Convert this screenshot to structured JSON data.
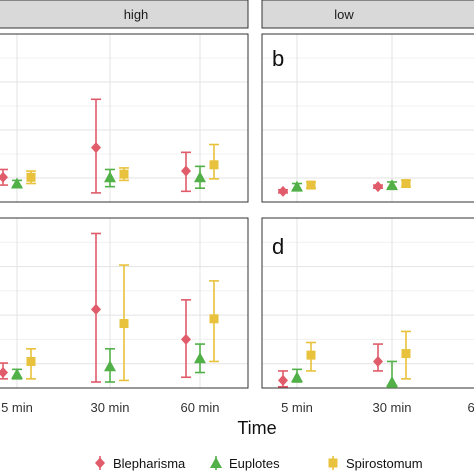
{
  "chart_data": {
    "type": "scatter",
    "subtype": "point-range facet grid",
    "xlabel": "Time",
    "x_categories": [
      "5 min",
      "30 min",
      "60 min"
    ],
    "facet_columns": [
      "high",
      "low"
    ],
    "panel_tags": [
      "b",
      "d"
    ],
    "legend": {
      "position": "bottom",
      "entries": [
        "Blepharisma",
        "Euplotes",
        "Spirostomum"
      ]
    },
    "grid": true,
    "colors": {
      "Blepharisma": "#e05c6a",
      "Euplotes": "#52b048",
      "Spirostomum": "#e8c23c"
    },
    "markers": {
      "Blepharisma": "diamond",
      "Euplotes": "triangle",
      "Spirostomum": "square"
    },
    "top_row_ylim": [
      0,
      1
    ],
    "bottom_row_ylim": [
      0,
      1
    ],
    "panels": [
      {
        "row": 0,
        "col": "high",
        "series": [
          {
            "name": "Blepharisma",
            "points": [
              {
                "x": "5 min",
                "y": 0.12,
                "lo": 0.07,
                "hi": 0.17
              },
              {
                "x": "30 min",
                "y": 0.31,
                "lo": 0.02,
                "hi": 0.62
              },
              {
                "x": "60 min",
                "y": 0.16,
                "lo": 0.03,
                "hi": 0.28
              }
            ]
          },
          {
            "name": "Euplotes",
            "points": [
              {
                "x": "5 min",
                "y": 0.08,
                "lo": 0.06,
                "hi": 0.1
              },
              {
                "x": "30 min",
                "y": 0.12,
                "lo": 0.06,
                "hi": 0.17
              },
              {
                "x": "60 min",
                "y": 0.12,
                "lo": 0.05,
                "hi": 0.19
              }
            ]
          },
          {
            "name": "Spirostomum",
            "points": [
              {
                "x": "5 min",
                "y": 0.12,
                "lo": 0.08,
                "hi": 0.16
              },
              {
                "x": "30 min",
                "y": 0.14,
                "lo": 0.1,
                "hi": 0.18
              },
              {
                "x": "60 min",
                "y": 0.2,
                "lo": 0.11,
                "hi": 0.33
              }
            ]
          }
        ]
      },
      {
        "row": 0,
        "col": "low",
        "series": [
          {
            "name": "Blepharisma",
            "points": [
              {
                "x": "5 min",
                "y": 0.03,
                "lo": 0.02,
                "hi": 0.04
              },
              {
                "x": "30 min",
                "y": 0.06,
                "lo": 0.05,
                "hi": 0.07
              }
            ]
          },
          {
            "name": "Euplotes",
            "points": [
              {
                "x": "5 min",
                "y": 0.06,
                "lo": 0.04,
                "hi": 0.08
              },
              {
                "x": "30 min",
                "y": 0.07,
                "lo": 0.05,
                "hi": 0.09
              }
            ]
          },
          {
            "name": "Spirostomum",
            "points": [
              {
                "x": "5 min",
                "y": 0.07,
                "lo": 0.05,
                "hi": 0.09
              },
              {
                "x": "30 min",
                "y": 0.08,
                "lo": 0.06,
                "hi": 0.1
              }
            ]
          }
        ]
      },
      {
        "row": 1,
        "col": "high",
        "series": [
          {
            "name": "Blepharisma",
            "points": [
              {
                "x": "5 min",
                "y": 0.06,
                "lo": 0.02,
                "hi": 0.12
              },
              {
                "x": "30 min",
                "y": 0.46,
                "lo": 0.0,
                "hi": 0.94
              },
              {
                "x": "60 min",
                "y": 0.27,
                "lo": 0.03,
                "hi": 0.52
              }
            ]
          },
          {
            "name": "Euplotes",
            "points": [
              {
                "x": "5 min",
                "y": 0.05,
                "lo": 0.02,
                "hi": 0.08
              },
              {
                "x": "30 min",
                "y": 0.1,
                "lo": 0.0,
                "hi": 0.21
              },
              {
                "x": "60 min",
                "y": 0.15,
                "lo": 0.06,
                "hi": 0.24
              }
            ]
          },
          {
            "name": "Spirostomum",
            "points": [
              {
                "x": "5 min",
                "y": 0.13,
                "lo": 0.02,
                "hi": 0.21
              },
              {
                "x": "30 min",
                "y": 0.37,
                "lo": 0.01,
                "hi": 0.74
              },
              {
                "x": "60 min",
                "y": 0.4,
                "lo": 0.13,
                "hi": 0.64
              }
            ]
          }
        ]
      },
      {
        "row": 1,
        "col": "low",
        "series": [
          {
            "name": "Blepharisma",
            "points": [
              {
                "x": "5 min",
                "y": 0.01,
                "lo": -0.03,
                "hi": 0.07
              },
              {
                "x": "30 min",
                "y": 0.13,
                "lo": 0.07,
                "hi": 0.24
              }
            ]
          },
          {
            "name": "Euplotes",
            "points": [
              {
                "x": "5 min",
                "y": 0.03,
                "lo": 0.0,
                "hi": 0.08
              },
              {
                "x": "30 min",
                "y": 0.0,
                "lo": -0.09,
                "hi": 0.13
              }
            ]
          },
          {
            "name": "Spirostomum",
            "points": [
              {
                "x": "5 min",
                "y": 0.17,
                "lo": 0.07,
                "hi": 0.25
              },
              {
                "x": "30 min",
                "y": 0.18,
                "lo": 0.02,
                "hi": 0.32
              }
            ]
          }
        ]
      }
    ]
  }
}
